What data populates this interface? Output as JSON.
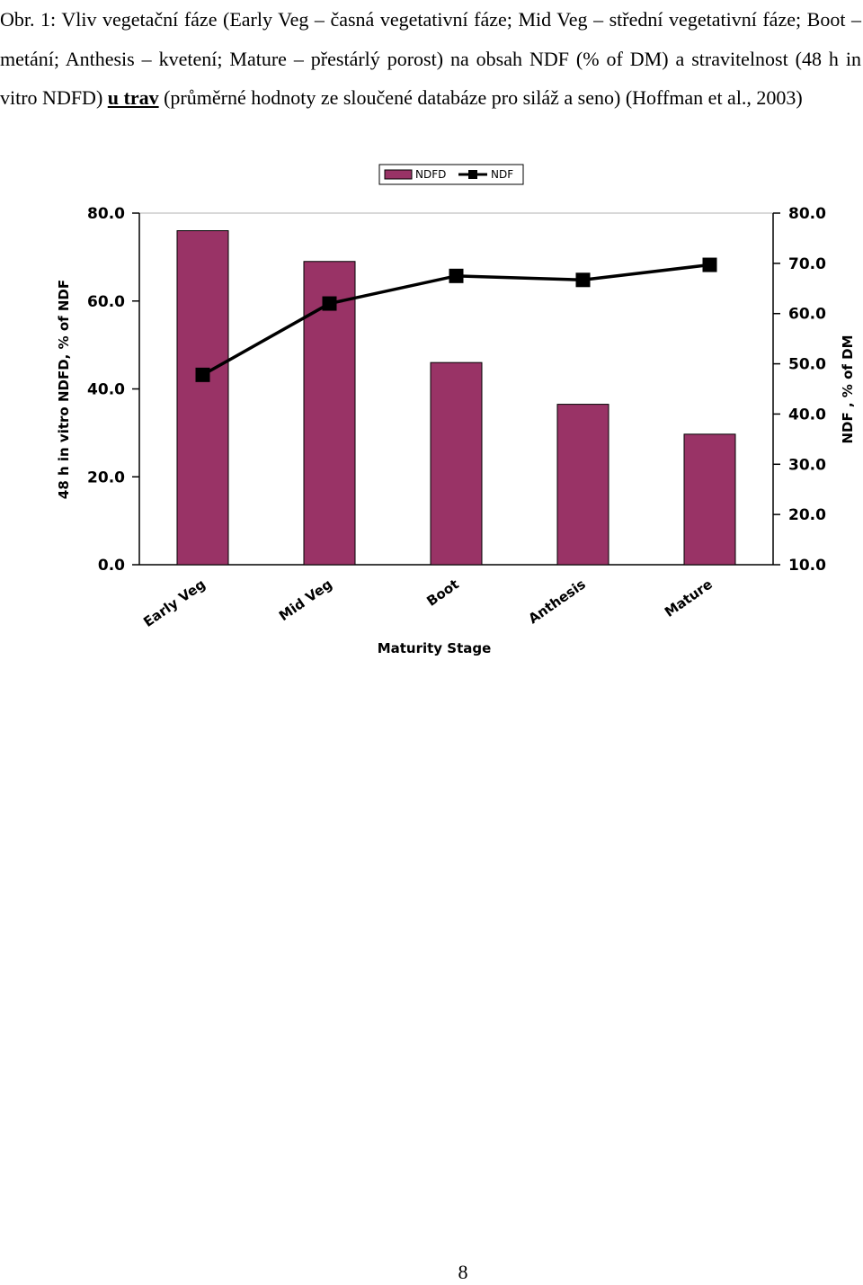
{
  "caption": {
    "text_before": "Obr. 1: Vliv vegetační fáze (Early Veg – časná vegetativní fáze; Mid Veg – střední vegetativní fáze; Boot – metání; Anthesis – kvetení; Mature – přestárlý porost) na obsah NDF (% of DM) a stravitelnost (48 h in vitro NDFD) ",
    "underlined": "u trav",
    "text_after": " (průměrné hodnoty ze sloučené databáze pro siláž a seno) (Hoffman et al., 2003)"
  },
  "page_number": "8",
  "colors": {
    "bar": "#993366",
    "line": "#000000",
    "axis": "#000000"
  },
  "chart_data": {
    "type": "bar",
    "categories": [
      "Early Veg",
      "Mid Veg",
      "Boot",
      "Anthesis",
      "Mature"
    ],
    "series": [
      {
        "name": "NDFD",
        "type": "bar",
        "axis": "left",
        "values": [
          76.0,
          69.0,
          46.0,
          36.5,
          29.7
        ]
      },
      {
        "name": "NDF",
        "type": "line",
        "axis": "right",
        "marker": "square",
        "values": [
          47.8,
          62.0,
          67.5,
          66.7,
          69.7
        ]
      }
    ],
    "xlabel": "Maturity Stage",
    "ylabel": "48 h in vitro NDFD, % of NDF",
    "ylabel_right": "NDF , % of DM",
    "ylim": [
      0,
      80
    ],
    "ylim_right": [
      10,
      80
    ],
    "yticks": [
      "0.0",
      "20.0",
      "40.0",
      "60.0",
      "80.0"
    ],
    "yticks_right": [
      "10.0",
      "20.0",
      "30.0",
      "40.0",
      "50.0",
      "60.0",
      "70.0",
      "80.0"
    ],
    "legend_position": "top-center",
    "grid": false
  }
}
